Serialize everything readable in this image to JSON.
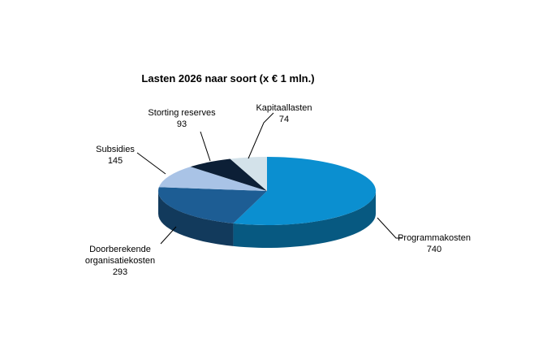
{
  "chart_data": {
    "type": "pie",
    "style": "3d",
    "title": "Lasten 2026 naar soort (x € 1 mln.)",
    "unit": "€ mln.",
    "slices": [
      {
        "name": "Programmakosten",
        "value": 740,
        "color": "#0b8fd0"
      },
      {
        "name": "Doorberekende organisatiekosten",
        "value": 293,
        "color": "#1d5d94"
      },
      {
        "name": "Subsidies",
        "value": 145,
        "color": "#a9c3e6"
      },
      {
        "name": "Storting reserves",
        "value": 93,
        "color": "#0c1f36"
      },
      {
        "name": "Kapitaallasten",
        "value": 74,
        "color": "#d3e2ea"
      }
    ],
    "labels": [
      {
        "lines": [
          "Programmakosten"
        ],
        "value": "740"
      },
      {
        "lines": [
          "Doorberekende",
          "organisatiekosten"
        ],
        "value": "293"
      },
      {
        "lines": [
          "Subsidies"
        ],
        "value": "145"
      },
      {
        "lines": [
          "Storting reserves"
        ],
        "value": "93"
      },
      {
        "lines": [
          "Kapitaallasten"
        ],
        "value": "74"
      }
    ],
    "legend": "none"
  }
}
